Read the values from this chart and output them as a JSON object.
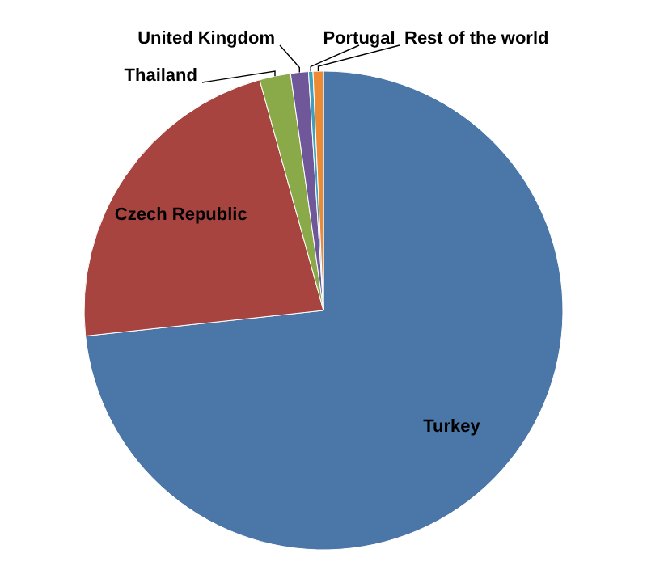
{
  "chart_data": {
    "type": "pie",
    "categories": [
      "Turkey",
      "Czech Republic",
      "Thailand",
      "United Kingdom",
      "Portugal",
      "Rest of the world"
    ],
    "values": [
      73.3,
      22.4,
      2.1,
      1.2,
      0.3,
      0.7
    ],
    "colors": [
      "#4a76a8",
      "#a84440",
      "#8aaa4a",
      "#70579a",
      "#3fa0be",
      "#ee8a33"
    ],
    "legend": false
  }
}
